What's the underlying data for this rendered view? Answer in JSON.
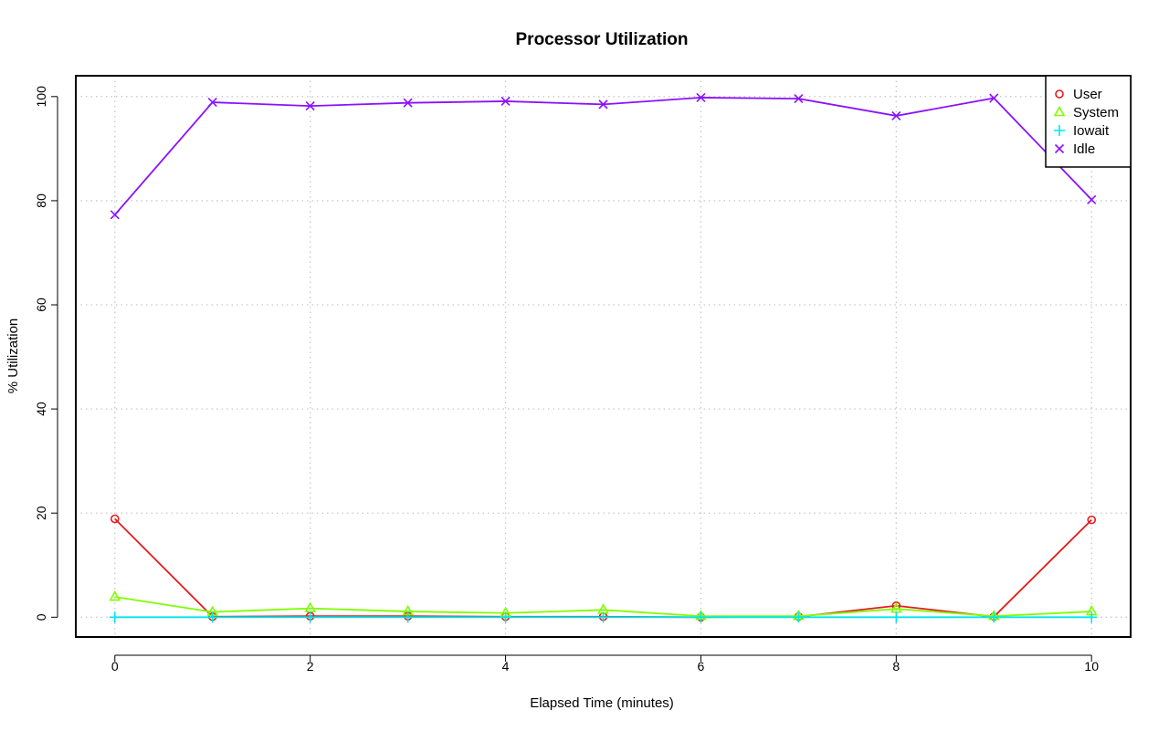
{
  "chart_data": {
    "type": "line",
    "title": "Processor Utilization",
    "xlabel": "Elapsed Time (minutes)",
    "ylabel": "% Utilization",
    "x": [
      0,
      1,
      2,
      3,
      4,
      5,
      6,
      7,
      8,
      9,
      10
    ],
    "xlim": [
      -0.4,
      10.4
    ],
    "ylim": [
      -3.8,
      104.0
    ],
    "xticks": [
      0,
      2,
      4,
      6,
      8,
      10
    ],
    "yticks": [
      0,
      20,
      40,
      60,
      80,
      100
    ],
    "grid": true,
    "legend_position": "top-right",
    "series": [
      {
        "name": "User",
        "color": "#e41a1c",
        "marker": "circle",
        "values": [
          18.9,
          0.1,
          0.2,
          0.2,
          0.1,
          0.1,
          0.0,
          0.1,
          2.2,
          0.1,
          18.7
        ]
      },
      {
        "name": "System",
        "color": "#7fff00",
        "marker": "triangle",
        "values": [
          3.9,
          1.0,
          1.7,
          1.1,
          0.8,
          1.4,
          0.2,
          0.2,
          1.6,
          0.2,
          1.1
        ]
      },
      {
        "name": "Iowait",
        "color": "#00e5ee",
        "marker": "plus",
        "values": [
          0.0,
          0.0,
          0.0,
          0.0,
          0.0,
          0.0,
          0.0,
          0.0,
          0.0,
          0.0,
          0.0
        ]
      },
      {
        "name": "Idle",
        "color": "#8a12ff",
        "marker": "cross",
        "values": [
          77.3,
          98.9,
          98.2,
          98.8,
          99.1,
          98.5,
          99.8,
          99.6,
          96.3,
          99.7,
          80.2
        ]
      }
    ]
  }
}
